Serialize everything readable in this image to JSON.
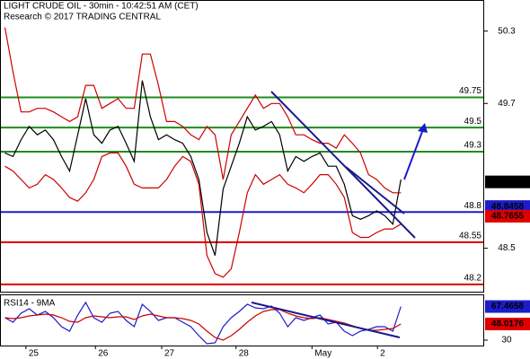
{
  "chart_data": [
    {
      "type": "line",
      "title": "LIGHT CRUDE OIL - 30min - 10:42:51 AM (CET)",
      "subtitle": "Research © 2017 TRADING CENTRAL",
      "x": [
        0,
        1,
        2,
        3,
        4,
        5,
        6,
        7,
        8,
        9,
        10,
        11,
        12,
        13,
        14,
        15,
        16,
        17,
        18,
        19,
        20,
        21,
        22,
        23,
        24,
        25,
        26,
        27,
        28,
        29,
        30,
        31,
        32,
        33,
        34,
        35,
        36,
        37,
        38,
        39,
        40,
        41,
        42,
        43,
        44,
        45,
        46,
        47,
        48,
        49
      ],
      "xlim": [
        -0.5,
        59.2
      ],
      "xticks": [
        {
          "value": 2.6,
          "label": "25"
        },
        {
          "value": 11.2,
          "label": "26"
        },
        {
          "value": 19.4,
          "label": "27"
        },
        {
          "value": 28.6,
          "label": "28"
        },
        {
          "value": 38,
          "label": "May"
        },
        {
          "value": 46.1,
          "label": "2"
        }
      ],
      "ylim": [
        48.14,
        50.55
      ],
      "yticks": [
        50.3,
        49.7,
        48.5
      ],
      "series": [
        {
          "color": "#000000",
          "values": [
            49.29,
            49.26,
            49.4,
            49.51,
            49.44,
            49.48,
            49.4,
            49.26,
            49.14,
            49.44,
            49.74,
            49.44,
            49.37,
            49.48,
            49.51,
            49.37,
            49.22,
            49.89,
            49.59,
            49.4,
            49.44,
            49.4,
            49.37,
            49.26,
            49.07,
            48.63,
            48.44,
            48.99,
            49.18,
            49.37,
            49.59,
            49.48,
            49.51,
            49.55,
            49.44,
            49.14,
            49.26,
            49.22,
            49.26,
            49.29,
            49.18,
            49.18,
            49.03,
            48.77,
            48.74,
            48.77,
            48.81,
            48.77,
            48.7,
            49.07
          ]
        },
        {
          "color": "#cc0000",
          "values": [
            50.33,
            49.96,
            49.63,
            49.63,
            49.66,
            49.66,
            49.63,
            49.59,
            49.55,
            49.59,
            49.85,
            49.85,
            49.66,
            49.7,
            49.74,
            49.66,
            49.66,
            50.11,
            50.11,
            49.85,
            49.55,
            49.55,
            49.51,
            49.44,
            49.4,
            49.51,
            49.44,
            49.07,
            49.44,
            49.55,
            49.66,
            49.77,
            49.66,
            49.7,
            49.7,
            49.59,
            49.44,
            49.44,
            49.4,
            49.37,
            49.37,
            49.33,
            49.44,
            49.37,
            49.29,
            49.11,
            49.07,
            49.0,
            48.96,
            48.96
          ]
        },
        {
          "color": "#cc0000",
          "values": [
            49.18,
            49.14,
            49.07,
            49.0,
            49.03,
            49.11,
            49.07,
            49.0,
            48.92,
            48.89,
            48.96,
            49.07,
            49.26,
            49.29,
            49.29,
            49.18,
            49.03,
            49.0,
            49.0,
            49.0,
            49.07,
            49.18,
            49.26,
            49.22,
            49.03,
            48.44,
            48.29,
            48.26,
            48.33,
            48.63,
            48.96,
            49.11,
            49.03,
            49.07,
            49.11,
            49.03,
            49.0,
            48.96,
            49.03,
            49.11,
            49.11,
            49.03,
            48.92,
            48.63,
            48.59,
            48.59,
            48.63,
            48.66,
            48.66,
            48.7
          ]
        }
      ],
      "levels": [
        49.75,
        49.5,
        49.3,
        48.8,
        48.55,
        48.2
      ],
      "level_colors": [
        "#1e8c1e",
        "#1e8c1e",
        "#1e8c1e",
        "#1c1ccc",
        "#e00000",
        "#e00000"
      ],
      "markers": [
        {
          "value": 49.05,
          "color": "#000000"
        },
        {
          "value": 48.8458,
          "color": "#1c1ccc"
        },
        {
          "value": 48.7655,
          "color": "#e00000"
        }
      ]
    },
    {
      "type": "line",
      "title": "RSI14 - 9MA",
      "x": [
        0,
        1,
        2,
        3,
        4,
        5,
        6,
        7,
        8,
        9,
        10,
        11,
        12,
        13,
        14,
        15,
        16,
        17,
        18,
        19,
        20,
        21,
        22,
        23,
        24,
        25,
        26,
        27,
        28,
        29,
        30,
        31,
        32,
        33,
        34,
        35,
        36,
        37,
        38,
        39,
        40,
        41,
        42,
        43,
        44,
        45,
        46,
        47,
        48,
        49
      ],
      "xlim": [
        -0.5,
        59.2
      ],
      "ylim": [
        24,
        80
      ],
      "yticks": [
        30
      ],
      "series": [
        {
          "color": "#1c1ccc",
          "values": [
            55,
            50,
            60,
            65,
            58,
            62,
            55,
            45,
            40,
            58,
            72,
            55,
            50,
            60,
            62,
            52,
            45,
            70,
            62,
            52,
            55,
            55,
            50,
            45,
            35,
            26,
            27,
            45,
            55,
            62,
            70,
            66,
            65,
            68,
            60,
            45,
            55,
            52,
            55,
            58,
            48,
            50,
            40,
            35,
            40,
            42,
            45,
            45,
            40,
            67.4658
          ]
        },
        {
          "color": "#cc0000",
          "values": [
            55,
            54,
            55,
            57,
            58,
            59,
            58,
            55,
            51,
            50,
            55,
            57,
            56,
            55,
            56,
            56,
            53,
            57,
            59,
            57,
            55,
            55,
            54,
            52,
            48,
            40,
            33,
            30,
            35,
            42,
            50,
            57,
            62,
            64,
            64,
            60,
            57,
            55,
            54,
            55,
            53,
            51,
            49,
            46,
            43,
            41,
            41,
            42,
            43,
            48.0176
          ]
        }
      ],
      "markers": [
        {
          "value": 67.4658,
          "color": "#1c1ccc"
        },
        {
          "value": 48.0176,
          "color": "#e00000"
        }
      ]
    }
  ]
}
